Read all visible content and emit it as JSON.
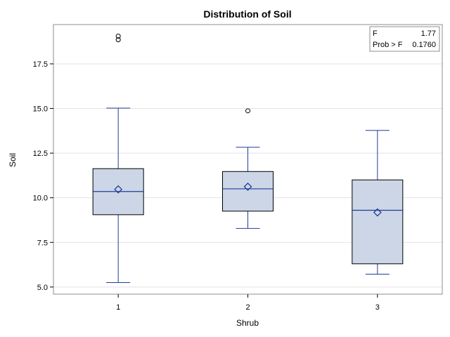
{
  "chart_data": {
    "type": "box",
    "title": "Distribution of Soil",
    "xlabel": "Shrub",
    "ylabel": "Soil",
    "ylim": [
      4.6,
      19.7
    ],
    "yticks": [
      5.0,
      7.5,
      10.0,
      12.5,
      15.0,
      17.5
    ],
    "ytick_labels": [
      "5.0",
      "7.5",
      "10.0",
      "12.5",
      "15.0",
      "17.5"
    ],
    "grid": true,
    "categories": [
      "1",
      "2",
      "3"
    ],
    "boxes": [
      {
        "category": "1",
        "whisker_low": 5.25,
        "q1": 9.05,
        "median": 10.35,
        "q3": 11.63,
        "whisker_high": 15.02,
        "mean": 10.47,
        "outliers": [
          18.85,
          19.05
        ]
      },
      {
        "category": "2",
        "whisker_low": 8.28,
        "q1": 9.25,
        "median": 10.5,
        "q3": 11.47,
        "whisker_high": 12.83,
        "mean": 10.62,
        "outliers": [
          14.87
        ]
      },
      {
        "category": "3",
        "whisker_low": 5.72,
        "q1": 6.3,
        "median": 9.3,
        "q3": 11.0,
        "whisker_high": 13.77,
        "mean": 9.18,
        "outliers": []
      }
    ],
    "stats": [
      {
        "label": "F",
        "value": "1.77"
      },
      {
        "label": "Prob > F",
        "value": "0.1760"
      }
    ],
    "stats_placement": "top-right",
    "colors": {
      "box_fill": "#ccd6e6",
      "box_stroke": "#000000",
      "line": "#1f3d99",
      "grid": "#e3e3e3",
      "frame": "#8c8c8c"
    }
  }
}
